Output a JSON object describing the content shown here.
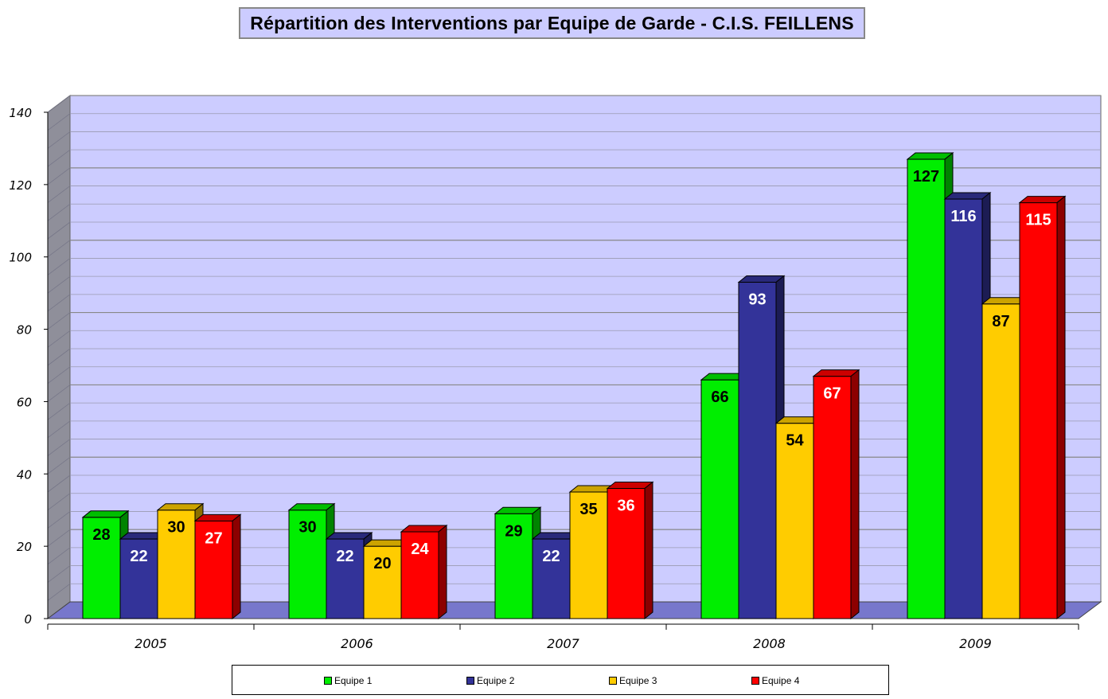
{
  "chart_data": {
    "type": "bar",
    "title": "Répartition des Interventions par Equipe de Garde - C.I.S. FEILLENS",
    "categories": [
      "2005",
      "2006",
      "2007",
      "2008",
      "2009"
    ],
    "series": [
      {
        "name": "Equipe 1",
        "color": "#00ee00",
        "values": [
          28,
          30,
          29,
          66,
          127
        ]
      },
      {
        "name": "Equipe 2",
        "color": "#333399",
        "values": [
          22,
          22,
          22,
          93,
          116
        ]
      },
      {
        "name": "Equipe 3",
        "color": "#ffcc00",
        "values": [
          30,
          20,
          35,
          54,
          87
        ]
      },
      {
        "name": "Equipe 4",
        "color": "#ff0000",
        "values": [
          27,
          24,
          36,
          67,
          115
        ]
      }
    ],
    "ylim": [
      0,
      140
    ],
    "yticks": [
      0,
      20,
      40,
      60,
      80,
      100,
      120,
      140
    ],
    "grid": true,
    "legend": "bottom",
    "plot_background": "#ccccff",
    "floor_color": "#7777cc"
  }
}
